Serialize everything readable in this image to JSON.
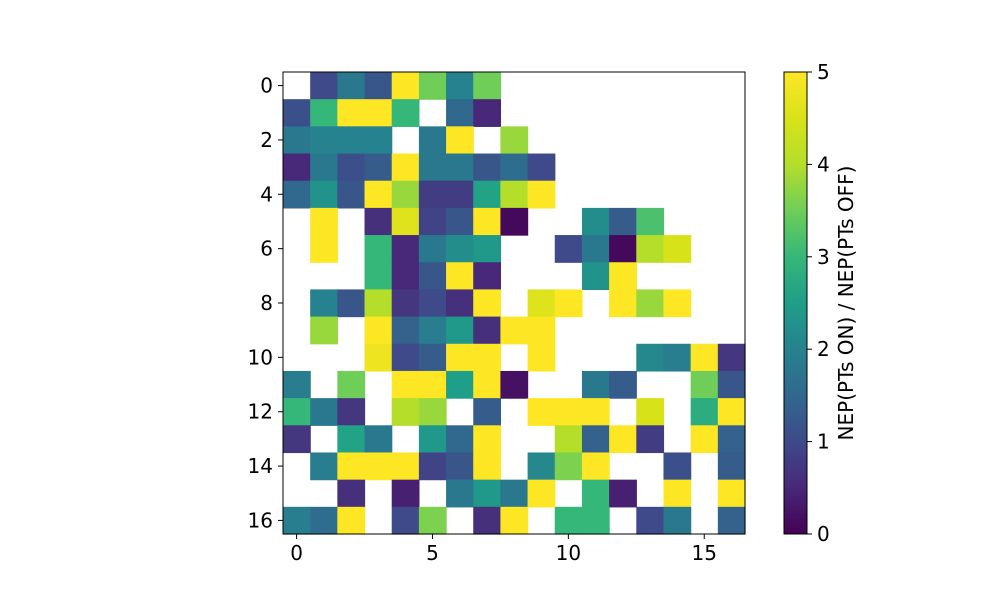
{
  "chart_data": {
    "type": "heatmap",
    "rows": 17,
    "cols": 17,
    "x_ticks": [
      0,
      5,
      10,
      15
    ],
    "y_ticks": [
      0,
      2,
      4,
      6,
      8,
      10,
      12,
      14,
      16
    ],
    "colorbar": {
      "label": "NEP(PTs ON) / NEP(PTs OFF)",
      "range": [
        0,
        5
      ],
      "ticks": [
        0,
        1,
        2,
        3,
        4,
        5
      ],
      "colormap": "viridis"
    },
    "values": [
      [
        null,
        1.0,
        1.8,
        1.2,
        5.0,
        3.5,
        2.0,
        3.5,
        null,
        null,
        null,
        null,
        null,
        null,
        null,
        null,
        null
      ],
      [
        1.1,
        3.0,
        5.0,
        5.0,
        3.0,
        null,
        1.5,
        0.5,
        null,
        null,
        null,
        null,
        null,
        null,
        null,
        null,
        null
      ],
      [
        1.8,
        2.0,
        2.0,
        2.0,
        null,
        1.8,
        5.0,
        null,
        3.8,
        null,
        null,
        null,
        null,
        null,
        null,
        null,
        null
      ],
      [
        0.5,
        1.8,
        1.1,
        1.3,
        5.0,
        1.8,
        1.8,
        1.2,
        1.6,
        1.0,
        null,
        null,
        null,
        null,
        null,
        null,
        null
      ],
      [
        1.5,
        2.3,
        1.2,
        5.0,
        3.8,
        0.8,
        0.8,
        2.6,
        4.0,
        5.0,
        null,
        null,
        null,
        null,
        null,
        null,
        null
      ],
      [
        null,
        5.0,
        null,
        0.6,
        4.6,
        0.9,
        1.2,
        5.0,
        0.1,
        null,
        null,
        2.2,
        1.3,
        3.2,
        null,
        null,
        null
      ],
      [
        null,
        5.0,
        null,
        3.0,
        0.5,
        1.8,
        2.2,
        2.4,
        null,
        null,
        1.0,
        1.8,
        0.1,
        4.0,
        4.5,
        null,
        null
      ],
      [
        null,
        null,
        null,
        3.0,
        0.5,
        1.2,
        5.0,
        0.5,
        null,
        null,
        null,
        2.3,
        5.0,
        null,
        null,
        null,
        null
      ],
      [
        null,
        2.0,
        1.2,
        4.0,
        0.7,
        1.0,
        0.6,
        5.0,
        null,
        4.6,
        5.0,
        null,
        5.0,
        3.8,
        5.0,
        null,
        null
      ],
      [
        null,
        3.8,
        null,
        5.0,
        1.4,
        1.9,
        2.4,
        0.6,
        5.0,
        5.0,
        null,
        null,
        null,
        null,
        null,
        null,
        null
      ],
      [
        null,
        null,
        null,
        4.8,
        1.0,
        1.3,
        5.0,
        5.0,
        null,
        5.0,
        null,
        null,
        null,
        2.1,
        1.9,
        5.0,
        0.7
      ],
      [
        1.9,
        null,
        3.5,
        null,
        5.0,
        5.0,
        2.5,
        5.0,
        0.2,
        null,
        null,
        1.8,
        1.3,
        null,
        null,
        3.5,
        1.2
      ],
      [
        3.0,
        1.8,
        0.7,
        null,
        4.0,
        3.8,
        null,
        1.3,
        null,
        5.0,
        5.0,
        5.0,
        null,
        4.5,
        null,
        2.8,
        5.0
      ],
      [
        0.7,
        null,
        2.6,
        1.8,
        null,
        2.4,
        1.5,
        5.0,
        null,
        null,
        4.0,
        1.4,
        5.0,
        0.8,
        null,
        5.0,
        1.4
      ],
      [
        null,
        1.9,
        5.0,
        5.0,
        5.0,
        0.9,
        1.2,
        5.0,
        null,
        2.1,
        3.6,
        5.0,
        null,
        null,
        1.1,
        null,
        1.3
      ],
      [
        null,
        null,
        0.6,
        null,
        0.4,
        null,
        1.8,
        2.4,
        1.8,
        5.0,
        null,
        3.0,
        0.4,
        null,
        5.0,
        null,
        5.0
      ],
      [
        1.9,
        1.6,
        5.0,
        null,
        1.0,
        3.6,
        null,
        0.6,
        5.0,
        null,
        3.0,
        3.0,
        null,
        1.0,
        1.8,
        null,
        1.4
      ]
    ]
  }
}
